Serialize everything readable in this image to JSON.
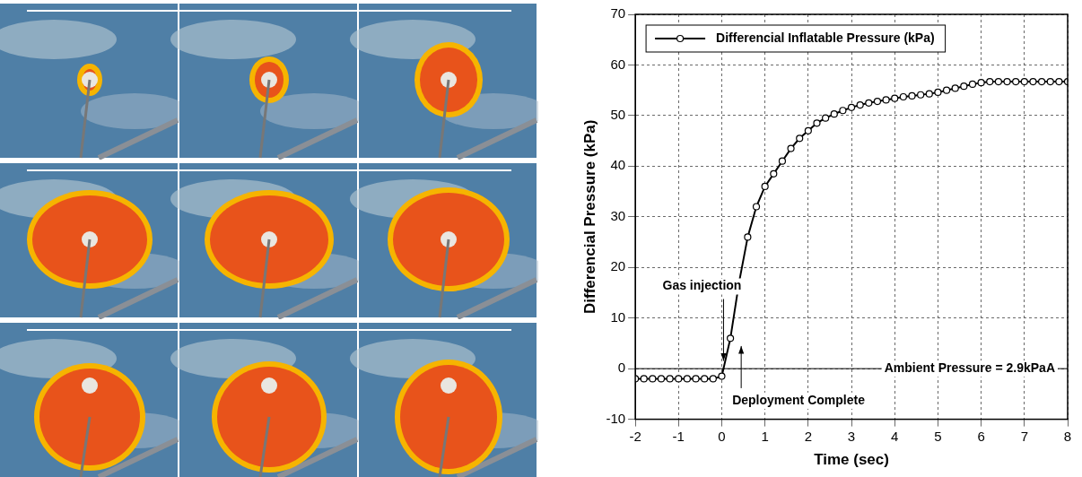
{
  "chart_data": {
    "type": "line",
    "x_label": "Time (sec)",
    "y_label": "Differencial Pressure (kPa)",
    "x": [
      -2,
      -1.8,
      -1.6,
      -1.4,
      -1.2,
      -1,
      -0.8,
      -0.6,
      -0.4,
      -0.2,
      0,
      0.2,
      0.4,
      0.6,
      0.8,
      1,
      1.2,
      1.4,
      1.6,
      1.8,
      2,
      2.2,
      2.4,
      2.6,
      2.8,
      3,
      3.2,
      3.4,
      3.6,
      3.8,
      4,
      4.2,
      4.4,
      4.6,
      4.8,
      5,
      5.2,
      5.4,
      5.6,
      5.8,
      6,
      6.2,
      6.4,
      6.6,
      6.8,
      7,
      7.2,
      7.4,
      7.6,
      7.8,
      8
    ],
    "series": [
      {
        "name": "Differencial Inflatable Pressure (kPa)",
        "color": "#000000",
        "marker": "circle",
        "values": [
          -2,
          -2,
          -2,
          -2,
          -2,
          -2,
          -2,
          -2,
          -2,
          -2,
          -1.5,
          6,
          17,
          26,
          32,
          36,
          38.5,
          41,
          43.5,
          45.5,
          47,
          48.5,
          49.5,
          50.3,
          51,
          51.6,
          52.1,
          52.5,
          52.8,
          53.1,
          53.4,
          53.7,
          53.9,
          54.1,
          54.3,
          54.6,
          55,
          55.4,
          55.8,
          56.2,
          56.5,
          56.7,
          56.7,
          56.7,
          56.7,
          56.7,
          56.7,
          56.7,
          56.7,
          56.7,
          56.7
        ]
      }
    ],
    "xlim": [
      -2,
      8
    ],
    "ylim": [
      -10,
      70
    ],
    "xticks": [
      -2,
      -1,
      0,
      1,
      2,
      3,
      4,
      5,
      6,
      7,
      8
    ],
    "yticks": [
      -10,
      0,
      10,
      20,
      30,
      40,
      50,
      60,
      70
    ],
    "grid": true,
    "legend": "upper left",
    "annotations": [
      {
        "text": "Gas injection",
        "x": 0,
        "y": 1
      },
      {
        "text": "Deployment Complete",
        "x": 0.45,
        "y": 5
      }
    ],
    "reference_lines": [
      {
        "text": "Ambient Pressure = 2.9kPaA",
        "y": 0
      }
    ]
  }
}
